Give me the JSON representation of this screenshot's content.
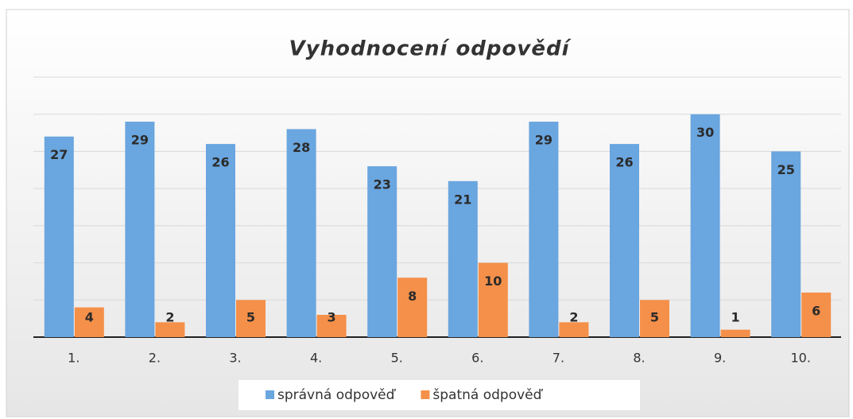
{
  "chart_data": {
    "type": "bar",
    "title": "Vyhodnocení odpovědí",
    "categories": [
      "1.",
      "2.",
      "3.",
      "4.",
      "5.",
      "6.",
      "7.",
      "8.",
      "9.",
      "10."
    ],
    "series": [
      {
        "name": "správná odpověď",
        "color": "#6aa6df",
        "values": [
          27,
          29,
          26,
          28,
          23,
          21,
          29,
          26,
          30,
          25
        ]
      },
      {
        "name": "špatná odpověď",
        "color": "#f5904a",
        "values": [
          4,
          2,
          5,
          3,
          8,
          10,
          2,
          5,
          1,
          6
        ]
      }
    ],
    "ylim": [
      0,
      35
    ],
    "yticks": [
      0,
      5,
      10,
      15,
      20,
      25,
      30,
      35
    ],
    "grid": true,
    "legend": "bottom"
  }
}
